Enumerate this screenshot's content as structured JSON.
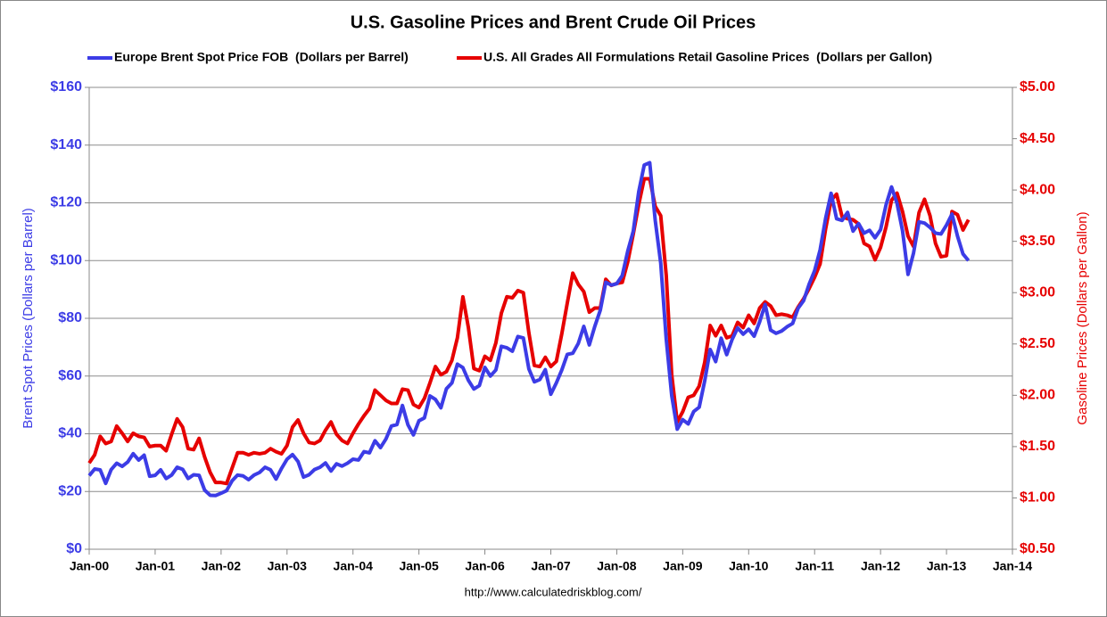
{
  "chart_data": {
    "type": "line",
    "title": "U.S. Gasoline Prices and Brent Crude Oil Prices",
    "source": "http://www.calculatedriskblog.com/",
    "ylabel": "Brent Spot Prices (Dollars per Barrel)",
    "y2label": "Gasoline Prices (Dollars per Gallon)",
    "grid": true,
    "legend": "top",
    "x": [
      "2000-01",
      "2000-02",
      "2000-03",
      "2000-04",
      "2000-05",
      "2000-06",
      "2000-07",
      "2000-08",
      "2000-09",
      "2000-10",
      "2000-11",
      "2000-12",
      "2001-01",
      "2001-02",
      "2001-03",
      "2001-04",
      "2001-05",
      "2001-06",
      "2001-07",
      "2001-08",
      "2001-09",
      "2001-10",
      "2001-11",
      "2001-12",
      "2002-01",
      "2002-02",
      "2002-03",
      "2002-04",
      "2002-05",
      "2002-06",
      "2002-07",
      "2002-08",
      "2002-09",
      "2002-10",
      "2002-11",
      "2002-12",
      "2003-01",
      "2003-02",
      "2003-03",
      "2003-04",
      "2003-05",
      "2003-06",
      "2003-07",
      "2003-08",
      "2003-09",
      "2003-10",
      "2003-11",
      "2003-12",
      "2004-01",
      "2004-02",
      "2004-03",
      "2004-04",
      "2004-05",
      "2004-06",
      "2004-07",
      "2004-08",
      "2004-09",
      "2004-10",
      "2004-11",
      "2004-12",
      "2005-01",
      "2005-02",
      "2005-03",
      "2005-04",
      "2005-05",
      "2005-06",
      "2005-07",
      "2005-08",
      "2005-09",
      "2005-10",
      "2005-11",
      "2005-12",
      "2006-01",
      "2006-02",
      "2006-03",
      "2006-04",
      "2006-05",
      "2006-06",
      "2006-07",
      "2006-08",
      "2006-09",
      "2006-10",
      "2006-11",
      "2006-12",
      "2007-01",
      "2007-02",
      "2007-03",
      "2007-04",
      "2007-05",
      "2007-06",
      "2007-07",
      "2007-08",
      "2007-09",
      "2007-10",
      "2007-11",
      "2007-12",
      "2008-01",
      "2008-02",
      "2008-03",
      "2008-04",
      "2008-05",
      "2008-06",
      "2008-07",
      "2008-08",
      "2008-09",
      "2008-10",
      "2008-11",
      "2008-12",
      "2009-01",
      "2009-02",
      "2009-03",
      "2009-04",
      "2009-05",
      "2009-06",
      "2009-07",
      "2009-08",
      "2009-09",
      "2009-10",
      "2009-11",
      "2009-12",
      "2010-01",
      "2010-02",
      "2010-03",
      "2010-04",
      "2010-05",
      "2010-06",
      "2010-07",
      "2010-08",
      "2010-09",
      "2010-10",
      "2010-11",
      "2010-12",
      "2011-01",
      "2011-02",
      "2011-03",
      "2011-04",
      "2011-05",
      "2011-06",
      "2011-07",
      "2011-08",
      "2011-09",
      "2011-10",
      "2011-11",
      "2011-12",
      "2012-01",
      "2012-02",
      "2012-03",
      "2012-04",
      "2012-05",
      "2012-06",
      "2012-07",
      "2012-08",
      "2012-09",
      "2012-10",
      "2012-11",
      "2012-12",
      "2013-01",
      "2013-02",
      "2013-03",
      "2013-04",
      "2013-05"
    ],
    "xlim": [
      "2000-01",
      "2014-01"
    ],
    "xticks": [
      {
        "value": "2000-01",
        "label": "Jan-00"
      },
      {
        "value": "2001-01",
        "label": "Jan-01"
      },
      {
        "value": "2002-01",
        "label": "Jan-02"
      },
      {
        "value": "2003-01",
        "label": "Jan-03"
      },
      {
        "value": "2004-01",
        "label": "Jan-04"
      },
      {
        "value": "2005-01",
        "label": "Jan-05"
      },
      {
        "value": "2006-01",
        "label": "Jan-06"
      },
      {
        "value": "2007-01",
        "label": "Jan-07"
      },
      {
        "value": "2008-01",
        "label": "Jan-08"
      },
      {
        "value": "2009-01",
        "label": "Jan-09"
      },
      {
        "value": "2010-01",
        "label": "Jan-10"
      },
      {
        "value": "2011-01",
        "label": "Jan-11"
      },
      {
        "value": "2012-01",
        "label": "Jan-12"
      },
      {
        "value": "2013-01",
        "label": "Jan-13"
      },
      {
        "value": "2014-01",
        "label": "Jan-14"
      }
    ],
    "ylim": [
      0,
      160
    ],
    "yticks": [
      {
        "value": 0,
        "label": "$0"
      },
      {
        "value": 20,
        "label": "$20"
      },
      {
        "value": 40,
        "label": "$40"
      },
      {
        "value": 60,
        "label": "$60"
      },
      {
        "value": 80,
        "label": "$80"
      },
      {
        "value": 100,
        "label": "$100"
      },
      {
        "value": 120,
        "label": "$120"
      },
      {
        "value": 140,
        "label": "$140"
      },
      {
        "value": 160,
        "label": "$160"
      }
    ],
    "y2lim": [
      0.5,
      5.0
    ],
    "y2ticks": [
      {
        "value": 0.5,
        "label": "$0.50"
      },
      {
        "value": 1.0,
        "label": "$1.00"
      },
      {
        "value": 1.5,
        "label": "$1.50"
      },
      {
        "value": 2.0,
        "label": "$2.00"
      },
      {
        "value": 2.5,
        "label": "$2.50"
      },
      {
        "value": 3.0,
        "label": "$3.00"
      },
      {
        "value": 3.5,
        "label": "$3.50"
      },
      {
        "value": 4.0,
        "label": "$4.00"
      },
      {
        "value": 4.5,
        "label": "$4.50"
      },
      {
        "value": 5.0,
        "label": "$5.00"
      }
    ],
    "series": [
      {
        "name": "Europe Brent Spot Price FOB  (Dollars per Barrel)",
        "color": "#3c3ce6",
        "values": [
          25.5,
          27.8,
          27.5,
          22.8,
          27.6,
          29.8,
          28.7,
          30.2,
          33.1,
          30.9,
          32.6,
          25.3,
          25.6,
          27.5,
          24.5,
          25.7,
          28.4,
          27.7,
          24.5,
          25.8,
          25.6,
          20.5,
          18.7,
          18.6,
          19.4,
          20.3,
          23.7,
          25.7,
          25.4,
          24.1,
          25.7,
          26.6,
          28.4,
          27.5,
          24.3,
          28.0,
          31.2,
          32.8,
          30.4,
          25.0,
          25.8,
          27.6,
          28.4,
          29.9,
          27.1,
          29.6,
          28.8,
          29.8,
          31.2,
          30.9,
          33.8,
          33.4,
          37.6,
          35.2,
          38.2,
          42.7,
          43.2,
          49.8,
          43.1,
          39.6,
          44.5,
          45.5,
          53.1,
          51.9,
          49.0,
          55.6,
          57.6,
          64.1,
          62.9,
          58.5,
          55.5,
          56.7,
          63.0,
          60.0,
          62.1,
          70.3,
          69.8,
          68.6,
          73.7,
          73.2,
          62.5,
          58.0,
          58.8,
          62.2,
          53.7,
          57.6,
          62.1,
          67.5,
          67.9,
          71.3,
          77.2,
          70.8,
          77.2,
          82.8,
          92.5,
          91.5,
          92.0,
          94.8,
          103.3,
          110.2,
          123.9,
          133.1,
          133.9,
          113.9,
          99.1,
          72.8,
          53.2,
          41.6,
          44.9,
          43.4,
          47.7,
          49.2,
          58.3,
          69.2,
          65.0,
          73.1,
          67.4,
          72.7,
          76.7,
          74.5,
          76.2,
          73.8,
          78.8,
          84.8,
          75.9,
          74.8,
          75.6,
          77.1,
          78.2,
          83.5,
          86.1,
          91.8,
          96.5,
          103.7,
          114.6,
          123.3,
          114.5,
          113.9,
          116.7,
          110.2,
          112.8,
          109.5,
          110.5,
          107.9,
          110.7,
          119.3,
          125.5,
          119.8,
          110.3,
          95.2,
          102.6,
          113.4,
          113.0,
          111.5,
          109.5,
          109.2,
          112.3,
          116.1,
          108.5,
          102.3,
          100.0
        ]
      },
      {
        "name": "U.S. All Grades All Formulations Retail Gasoline Prices  (Dollars per Gallon)",
        "color": "#e60000",
        "axis": "y2",
        "values": [
          1.34,
          1.42,
          1.6,
          1.53,
          1.55,
          1.7,
          1.63,
          1.55,
          1.63,
          1.6,
          1.59,
          1.5,
          1.51,
          1.51,
          1.46,
          1.62,
          1.77,
          1.69,
          1.48,
          1.47,
          1.58,
          1.4,
          1.25,
          1.15,
          1.15,
          1.14,
          1.29,
          1.44,
          1.44,
          1.42,
          1.44,
          1.43,
          1.44,
          1.48,
          1.45,
          1.43,
          1.51,
          1.69,
          1.76,
          1.63,
          1.54,
          1.53,
          1.56,
          1.66,
          1.74,
          1.62,
          1.56,
          1.53,
          1.63,
          1.72,
          1.8,
          1.87,
          2.05,
          2.0,
          1.95,
          1.92,
          1.92,
          2.06,
          2.05,
          1.91,
          1.88,
          1.97,
          2.12,
          2.28,
          2.2,
          2.23,
          2.34,
          2.56,
          2.96,
          2.66,
          2.26,
          2.24,
          2.38,
          2.34,
          2.51,
          2.8,
          2.96,
          2.95,
          3.02,
          3.0,
          2.61,
          2.29,
          2.28,
          2.37,
          2.28,
          2.33,
          2.6,
          2.9,
          3.19,
          3.08,
          3.01,
          2.81,
          2.85,
          2.85,
          3.13,
          3.07,
          3.09,
          3.1,
          3.3,
          3.57,
          3.86,
          4.11,
          4.11,
          3.84,
          3.75,
          3.17,
          2.2,
          1.74,
          1.84,
          1.98,
          2.0,
          2.09,
          2.32,
          2.68,
          2.58,
          2.68,
          2.56,
          2.58,
          2.71,
          2.66,
          2.78,
          2.7,
          2.85,
          2.91,
          2.87,
          2.78,
          2.79,
          2.78,
          2.76,
          2.86,
          2.94,
          3.04,
          3.15,
          3.28,
          3.62,
          3.9,
          3.96,
          3.74,
          3.72,
          3.71,
          3.67,
          3.48,
          3.45,
          3.32,
          3.44,
          3.64,
          3.9,
          3.97,
          3.79,
          3.55,
          3.45,
          3.78,
          3.91,
          3.75,
          3.48,
          3.35,
          3.36,
          3.79,
          3.76,
          3.61,
          3.71
        ]
      }
    ]
  }
}
